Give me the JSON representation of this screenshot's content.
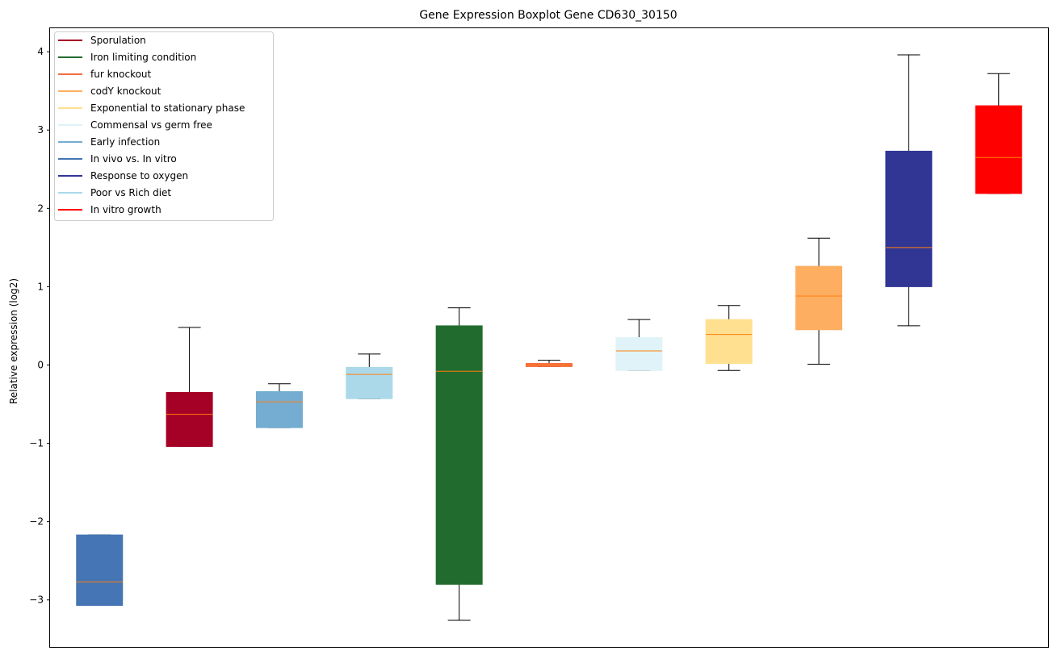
{
  "chart_data": {
    "type": "boxplot",
    "title": "Gene Expression Boxplot Gene CD630_30150",
    "xlabel": "",
    "ylabel": "Relative expression (log2)",
    "ylim": [
      -3.6,
      4.3
    ],
    "yticks": [
      -3,
      -2,
      -1,
      0,
      1,
      2,
      3,
      4
    ],
    "ytick_labels": [
      "−3",
      "−2",
      "−1",
      "0",
      "1",
      "2",
      "3",
      "4"
    ],
    "legend_position": "top-left",
    "legend": [
      {
        "label": "Sporulation",
        "color": "#a50026"
      },
      {
        "label": "Iron limiting condition",
        "color": "#226b2e"
      },
      {
        "label": "fur knockout",
        "color": "#f46d43"
      },
      {
        "label": "codY knockout",
        "color": "#fdae61"
      },
      {
        "label": "Exponential to stationary phase",
        "color": "#fee090"
      },
      {
        "label": "Commensal vs germ free",
        "color": "#e0f3f8"
      },
      {
        "label": "Early infection",
        "color": "#74add1"
      },
      {
        "label": "In vivo vs. In vitro",
        "color": "#4575b4"
      },
      {
        "label": "Response to oxygen",
        "color": "#313695"
      },
      {
        "label": "Poor vs Rich diet",
        "color": "#abd9e9"
      },
      {
        "label": "In vitro growth",
        "color": "#ff0000"
      }
    ],
    "boxes": [
      {
        "group": "In vivo vs. In vitro",
        "color": "#4575b4",
        "whisker_low": -3.07,
        "q1": -3.07,
        "median": -2.77,
        "q3": -2.17,
        "whisker_high": -2.17
      },
      {
        "group": "Sporulation",
        "color": "#a50026",
        "whisker_low": -1.04,
        "q1": -1.04,
        "median": -0.63,
        "q3": -0.35,
        "whisker_high": 0.48
      },
      {
        "group": "Early infection",
        "color": "#74add1",
        "whisker_low": -0.8,
        "q1": -0.8,
        "median": -0.47,
        "q3": -0.34,
        "whisker_high": -0.24
      },
      {
        "group": "Poor vs Rich diet",
        "color": "#abd9e9",
        "whisker_low": -0.43,
        "q1": -0.43,
        "median": -0.12,
        "q3": -0.03,
        "whisker_high": 0.14
      },
      {
        "group": "Iron limiting condition",
        "color": "#226b2e",
        "whisker_low": -3.26,
        "q1": -2.8,
        "median": -0.08,
        "q3": 0.5,
        "whisker_high": 0.73
      },
      {
        "group": "fur knockout",
        "color": "#f46d43",
        "whisker_low": -0.02,
        "q1": -0.02,
        "median": 0.0,
        "q3": 0.02,
        "whisker_high": 0.06
      },
      {
        "group": "Commensal vs germ free",
        "color": "#e0f3f8",
        "whisker_low": -0.07,
        "q1": -0.07,
        "median": 0.18,
        "q3": 0.35,
        "whisker_high": 0.58
      },
      {
        "group": "Exponential to stationary phase",
        "color": "#fee090",
        "whisker_low": -0.07,
        "q1": 0.02,
        "median": 0.39,
        "q3": 0.58,
        "whisker_high": 0.76
      },
      {
        "group": "codY knockout",
        "color": "#fdae61",
        "whisker_low": 0.01,
        "q1": 0.45,
        "median": 0.88,
        "q3": 1.26,
        "whisker_high": 1.62
      },
      {
        "group": "Response to oxygen",
        "color": "#313695",
        "whisker_low": 0.5,
        "q1": 1.0,
        "median": 1.5,
        "q3": 2.73,
        "whisker_high": 3.96
      },
      {
        "group": "In vitro growth",
        "color": "#ff0000",
        "whisker_low": 2.19,
        "q1": 2.19,
        "median": 2.65,
        "q3": 3.31,
        "whisker_high": 3.72
      }
    ],
    "median_color": "#ff7f0e",
    "whisker_color": "#000000"
  }
}
